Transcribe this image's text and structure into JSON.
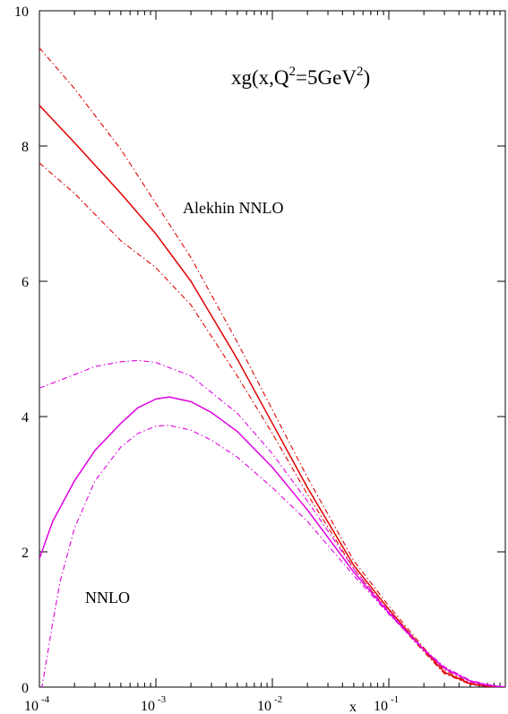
{
  "chart_data": {
    "type": "line",
    "title": "xg(x,Q²=5GeV²)",
    "title_parts": {
      "main": "xg(x,Q",
      "sup1": "2",
      "mid": "=5GeV",
      "sup2": "2",
      "end": ")"
    },
    "xlabel": "x",
    "ylabel": "",
    "x_scale": "log",
    "xlim": [
      0.0001,
      1.0
    ],
    "ylim": [
      0,
      10
    ],
    "grid": false,
    "x_ticks": [
      {
        "value": 0.0001,
        "base": "10",
        "exp": "-4"
      },
      {
        "value": 0.001,
        "base": "10",
        "exp": "-3"
      },
      {
        "value": 0.01,
        "base": "10",
        "exp": "-2"
      },
      {
        "value": 0.1,
        "base": "10",
        "exp": "-1"
      }
    ],
    "y_ticks": [
      0,
      2,
      4,
      6,
      8,
      10
    ],
    "y_tick_labels": [
      "0",
      "2",
      "4",
      "6",
      "8",
      "10"
    ],
    "annotations": [
      {
        "text": "Alekhin NNLO",
        "x": 0.004,
        "y": 7.1
      },
      {
        "text": "NNLO",
        "x": 0.00038,
        "y": 1.25
      }
    ],
    "series": [
      {
        "color": "#e00000",
        "style": "solid",
        "x": [
          0.0001,
          0.0002,
          0.0005,
          0.001,
          0.002,
          0.005,
          0.01,
          0.02,
          0.05,
          0.1,
          0.2,
          0.3,
          0.5,
          0.7,
          1.0
        ],
        "y": [
          8.6,
          8.05,
          7.3,
          6.7,
          6.0,
          4.85,
          3.9,
          2.95,
          1.8,
          1.15,
          0.55,
          0.22,
          0.05,
          0.01,
          0.0
        ]
      },
      {
        "color": "#e00000",
        "style": "dashdot",
        "x": [
          0.0001,
          0.0002,
          0.0005,
          0.001,
          0.002,
          0.005,
          0.01,
          0.02,
          0.05,
          0.1,
          0.2,
          0.3,
          0.5,
          0.7,
          1.0
        ],
        "y": [
          9.45,
          8.85,
          7.95,
          7.15,
          6.35,
          5.1,
          4.1,
          3.1,
          1.87,
          1.2,
          0.58,
          0.25,
          0.06,
          0.01,
          0.0
        ]
      },
      {
        "color": "#e00000",
        "style": "dashdot",
        "x": [
          0.0001,
          0.0002,
          0.0005,
          0.001,
          0.002,
          0.005,
          0.01,
          0.02,
          0.05,
          0.1,
          0.2,
          0.3,
          0.5,
          0.7,
          1.0
        ],
        "y": [
          7.75,
          7.3,
          6.6,
          6.2,
          5.65,
          4.6,
          3.75,
          2.85,
          1.75,
          1.1,
          0.52,
          0.2,
          0.04,
          0.01,
          0.0
        ]
      },
      {
        "color": "#e000e0",
        "style": "solid",
        "x": [
          0.0001,
          0.00013,
          0.0002,
          0.0003,
          0.0005,
          0.0007,
          0.001,
          0.0013,
          0.002,
          0.003,
          0.005,
          0.01,
          0.02,
          0.05,
          0.1,
          0.2,
          0.3,
          0.5,
          0.7,
          1.0
        ],
        "y": [
          1.9,
          2.45,
          3.05,
          3.5,
          3.9,
          4.13,
          4.26,
          4.29,
          4.22,
          4.06,
          3.78,
          3.25,
          2.62,
          1.7,
          1.1,
          0.55,
          0.28,
          0.09,
          0.03,
          0.0
        ]
      },
      {
        "color": "#e000e0",
        "style": "dashdot",
        "x": [
          0.0001,
          0.0002,
          0.0003,
          0.0005,
          0.0007,
          0.001,
          0.002,
          0.005,
          0.01,
          0.02,
          0.05,
          0.1,
          0.2,
          0.3,
          0.5,
          0.7,
          1.0
        ],
        "y": [
          4.42,
          4.62,
          4.74,
          4.81,
          4.83,
          4.8,
          4.6,
          4.05,
          3.45,
          2.75,
          1.75,
          1.12,
          0.56,
          0.3,
          0.1,
          0.04,
          0.0
        ]
      },
      {
        "color": "#e000e0",
        "style": "dashdot",
        "x": [
          0.0001,
          0.00011,
          0.00013,
          0.00015,
          0.0002,
          0.0003,
          0.0005,
          0.0007,
          0.001,
          0.0013,
          0.002,
          0.003,
          0.005,
          0.01,
          0.02,
          0.05,
          0.1,
          0.2,
          0.3,
          0.5,
          0.7,
          1.0
        ],
        "y": [
          -0.2,
          0.2,
          0.95,
          1.55,
          2.35,
          3.05,
          3.55,
          3.75,
          3.86,
          3.87,
          3.8,
          3.65,
          3.4,
          2.95,
          2.45,
          1.65,
          1.08,
          0.55,
          0.27,
          0.08,
          0.02,
          0.0
        ]
      }
    ]
  }
}
